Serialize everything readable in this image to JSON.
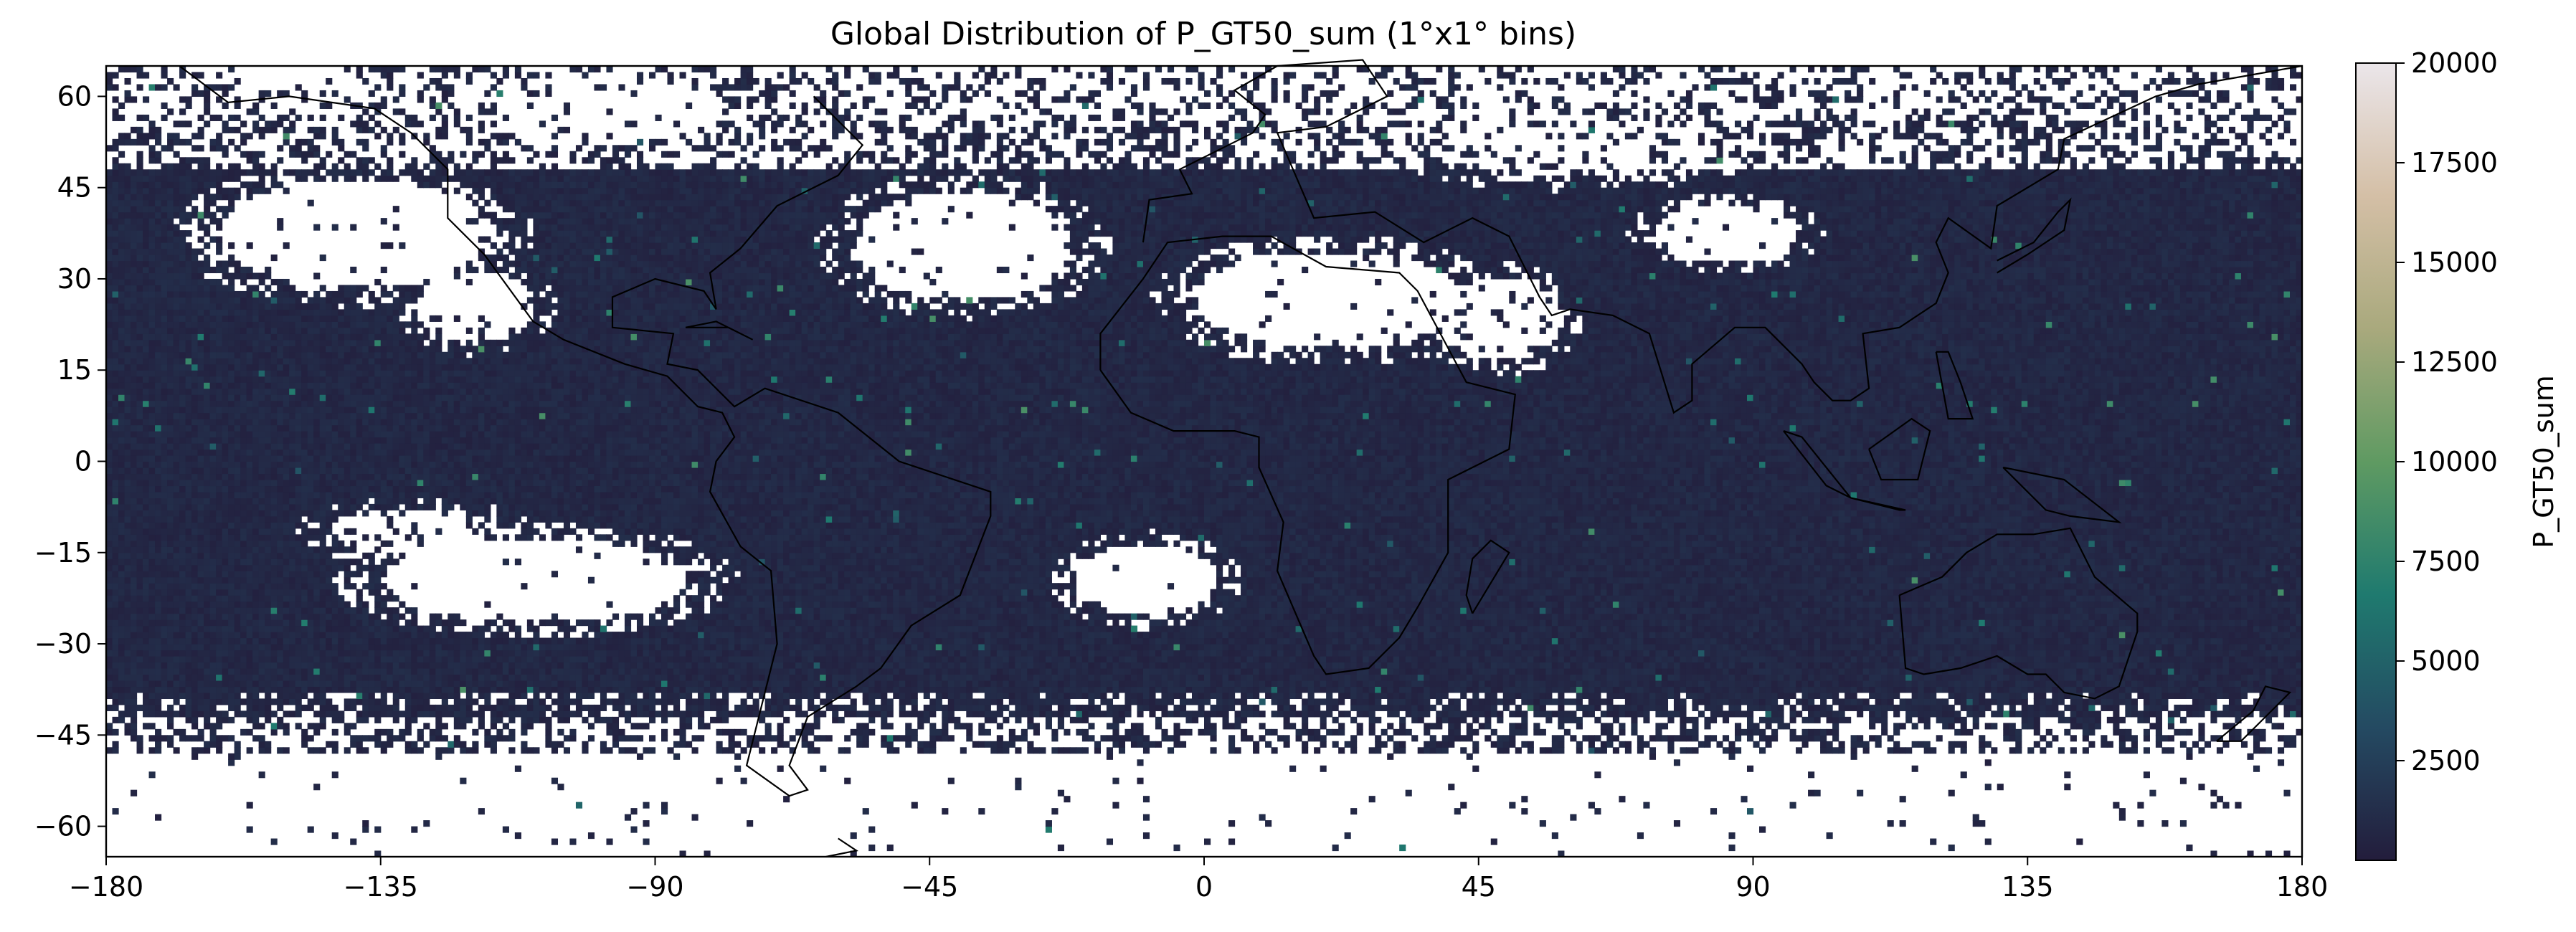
{
  "chart_data": {
    "type": "heatmap",
    "title": "Global Distribution of P_GT50_sum (1°x1° bins)",
    "xlabel": "",
    "ylabel": "",
    "xlim": [
      -180,
      180
    ],
    "ylim": [
      -65,
      65
    ],
    "x_ticks": [
      -180,
      -135,
      -90,
      -45,
      0,
      45,
      90,
      135,
      180
    ],
    "y_ticks": [
      -60,
      -45,
      -30,
      -15,
      0,
      15,
      30,
      45,
      60
    ],
    "bin_size_deg": 1,
    "grid": false,
    "colorbar": {
      "label": "P_GT50_sum",
      "range": [
        0,
        20000
      ],
      "ticks": [
        2500,
        5000,
        7500,
        10000,
        12500,
        15000,
        17500,
        20000
      ],
      "colormap": [
        "#231d3c",
        "#244a62",
        "#1f7a6f",
        "#5f9a62",
        "#a9a97d",
        "#d4bfa6",
        "#ebe6ea"
      ]
    },
    "typical_cell_value": 700,
    "empty_cells_color": "#ffffff",
    "empty_regions_description": [
      "no data over most land poleward of ~45°N",
      "no data in North Pacific, North Atlantic subtropical highs",
      "no data in South Pacific, South Atlantic subtropical highs",
      "no data over Sahara/Arabia, Tibet",
      "no data south of ~48°S"
    ],
    "coastlines": true,
    "borders": "dotted"
  }
}
